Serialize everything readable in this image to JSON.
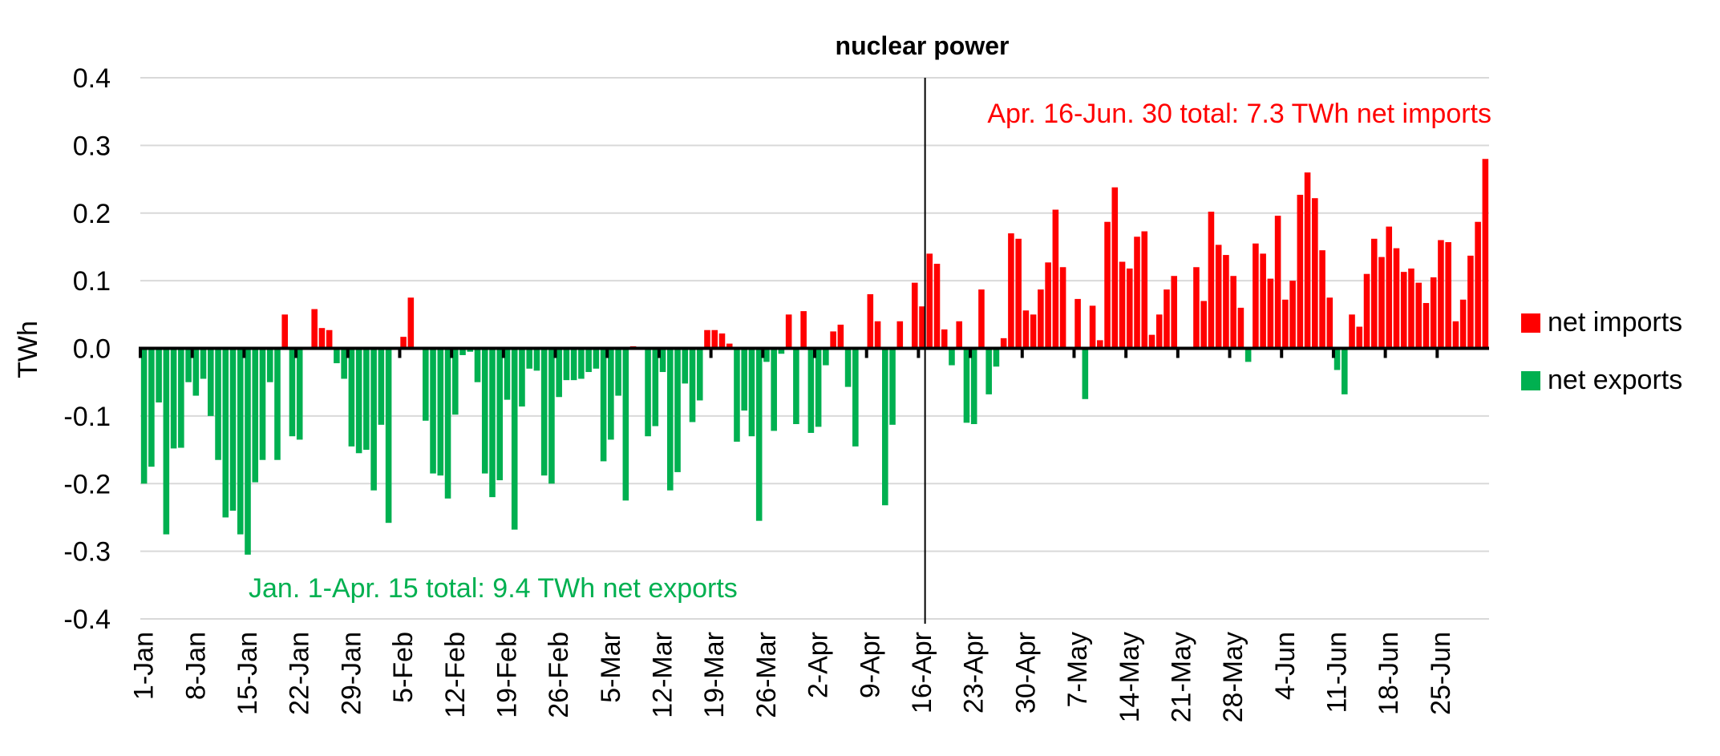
{
  "chart_data": {
    "type": "bar",
    "title": "nuclear power",
    "ylabel": "TWh",
    "xlabel": "",
    "ylim": [
      -0.4,
      0.4
    ],
    "yticks": [
      0.4,
      0.3,
      0.2,
      0.1,
      0.0,
      -0.1,
      -0.2,
      -0.3,
      -0.4
    ],
    "ytick_labels": [
      "0.4",
      "0.3",
      "0.2",
      "0.1",
      "0.0",
      "-0.1",
      "-0.2",
      "-0.3",
      "-0.4"
    ],
    "grid": true,
    "legend_position": "right",
    "x_tick_labels": [
      "1-Jan",
      "8-Jan",
      "15-Jan",
      "22-Jan",
      "29-Jan",
      "5-Feb",
      "12-Feb",
      "19-Feb",
      "26-Feb",
      "5-Mar",
      "12-Mar",
      "19-Mar",
      "26-Mar",
      "2-Apr",
      "9-Apr",
      "16-Apr",
      "23-Apr",
      "30-Apr",
      "7-May",
      "14-May",
      "21-May",
      "28-May",
      "4-Jun",
      "11-Jun",
      "18-Jun",
      "25-Jun"
    ],
    "x_tick_every": 7,
    "series": [
      {
        "name": "net imports",
        "color": "#ff0000"
      },
      {
        "name": "net exports",
        "color": "#00b050"
      }
    ],
    "divider_after_day": 106,
    "annotations": [
      {
        "text": "Apr. 16-Jun. 30 total: 7.3 TWh net imports",
        "color": "#ff0000"
      },
      {
        "text": "Jan. 1-Apr. 15 total: 9.4 TWh net exports",
        "color": "#00b050"
      }
    ],
    "values": [
      -0.2,
      -0.175,
      -0.08,
      -0.275,
      -0.148,
      -0.147,
      -0.05,
      -0.07,
      -0.045,
      -0.1,
      -0.165,
      -0.25,
      -0.24,
      -0.275,
      -0.305,
      -0.198,
      -0.165,
      -0.05,
      -0.165,
      0.05,
      -0.13,
      -0.135,
      0.002,
      0.058,
      0.03,
      0.027,
      -0.022,
      -0.045,
      -0.145,
      -0.155,
      -0.15,
      -0.21,
      -0.113,
      -0.258,
      0.0,
      0.017,
      0.075,
      0.0,
      -0.107,
      -0.185,
      -0.188,
      -0.222,
      -0.098,
      -0.01,
      -0.005,
      -0.05,
      -0.185,
      -0.22,
      -0.195,
      -0.076,
      -0.268,
      -0.086,
      -0.03,
      -0.033,
      -0.188,
      -0.2,
      -0.072,
      -0.047,
      -0.047,
      -0.045,
      -0.035,
      -0.03,
      -0.167,
      -0.135,
      -0.07,
      -0.225,
      0.003,
      0.002,
      -0.13,
      -0.115,
      -0.035,
      -0.21,
      -0.183,
      -0.052,
      -0.109,
      -0.077,
      0.027,
      0.027,
      0.022,
      0.007,
      -0.138,
      -0.092,
      -0.13,
      -0.255,
      -0.02,
      -0.122,
      -0.008,
      0.05,
      -0.112,
      0.055,
      -0.125,
      -0.116,
      -0.025,
      0.025,
      0.035,
      -0.057,
      -0.145,
      0.0,
      0.08,
      0.04,
      -0.232,
      -0.113,
      0.04,
      0.0,
      0.097,
      0.062,
      0.14,
      0.125,
      0.028,
      -0.025,
      0.04,
      -0.11,
      -0.112,
      0.087,
      -0.068,
      -0.027,
      0.015,
      0.17,
      0.162,
      0.056,
      0.05,
      0.087,
      0.127,
      0.205,
      0.12,
      0.0,
      0.073,
      -0.075,
      0.063,
      0.012,
      0.187,
      0.238,
      0.128,
      0.118,
      0.165,
      0.173,
      0.02,
      0.05,
      0.087,
      0.107,
      0.0,
      0.0,
      0.12,
      0.07,
      0.202,
      0.153,
      0.138,
      0.107,
      0.06,
      -0.02,
      0.155,
      0.14,
      0.103,
      0.196,
      0.072,
      0.1,
      0.227,
      0.26,
      0.222,
      0.145,
      0.075,
      -0.032,
      -0.068,
      0.05,
      0.032,
      0.11,
      0.162,
      0.135,
      0.18,
      0.148,
      0.113,
      0.118,
      0.097,
      0.067,
      0.105,
      0.16,
      0.157,
      0.04,
      0.072,
      0.137,
      0.187,
      0.28
    ]
  }
}
